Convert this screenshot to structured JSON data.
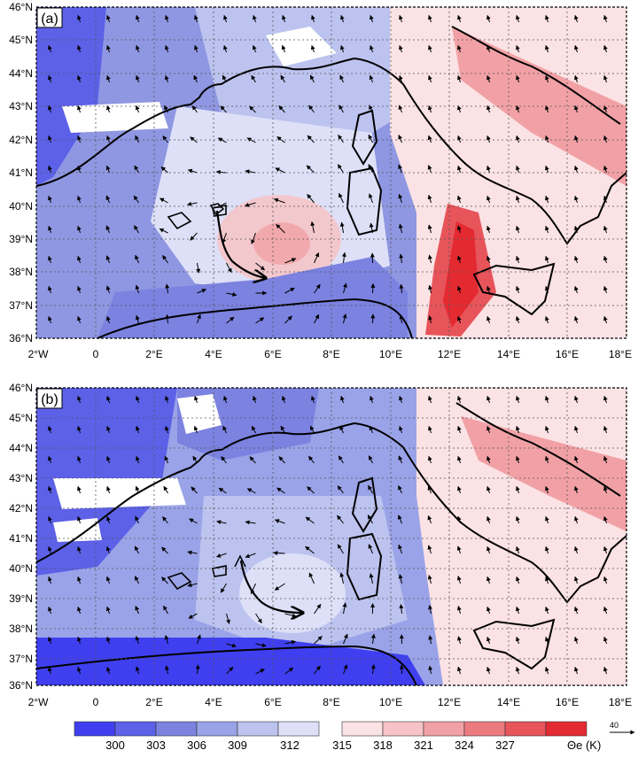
{
  "panels": [
    {
      "id": "a",
      "label": "(a)",
      "lat_labels": [
        "46°N",
        "45°N",
        "44°N",
        "43°N",
        "42°N",
        "41°N",
        "40°N",
        "39°N",
        "38°N",
        "37°N",
        "36°N"
      ],
      "lon_labels": [
        "2°W",
        "0",
        "2°E",
        "4°E",
        "6°E",
        "8°E",
        "10°E",
        "12°E",
        "14°E",
        "16°E",
        "18°E"
      ]
    },
    {
      "id": "b",
      "label": "(b)",
      "lat_labels": [
        "46°N",
        "45°N",
        "44°N",
        "43°N",
        "42°N",
        "41°N",
        "40°N",
        "39°N",
        "38°N",
        "37°N",
        "36°N"
      ],
      "lon_labels": [
        "2°W",
        "0",
        "2°E",
        "4°E",
        "6°E",
        "8°E",
        "10°E",
        "12°E",
        "14°E",
        "16°E",
        "18°E"
      ]
    }
  ],
  "colorbar": {
    "ticks": [
      "300",
      "303",
      "306",
      "309",
      "312",
      "315",
      "318",
      "321",
      "324",
      "327"
    ],
    "unit_label": "Θe (K)",
    "colors_blue": [
      "#3f3ff0",
      "#5c61e8",
      "#7b82e0",
      "#9aa3e8",
      "#bcc3ef",
      "#dde0f7"
    ],
    "colors_red": [
      "#fbe2e4",
      "#f7c3c6",
      "#f1a1a5",
      "#ec7b80",
      "#e7545a",
      "#e42a31"
    ]
  },
  "reference_vector": {
    "label": "40"
  },
  "colors": {
    "land_line": "#000000",
    "grid": "#555555"
  }
}
